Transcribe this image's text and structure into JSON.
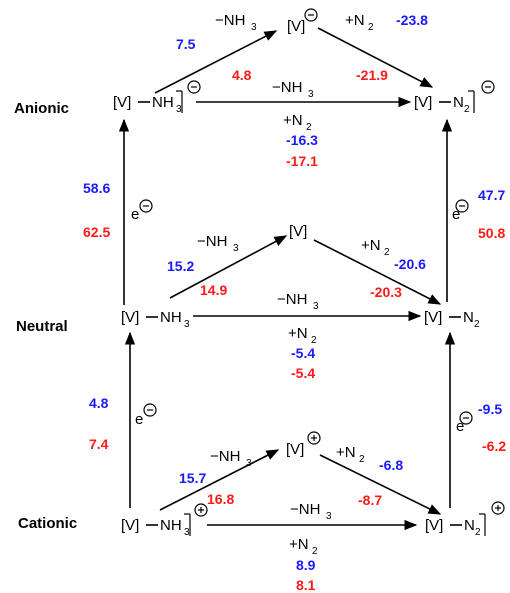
{
  "colors": {
    "blue": "#1a1aff",
    "red": "#ff1a1a",
    "black": "#000000"
  },
  "rows": {
    "anionic": "Anionic",
    "neutral": "Neutral",
    "cationic": "Cationic"
  },
  "species": {
    "v": "[V]",
    "nh3": "NH",
    "n2": "N",
    "sub3": "3",
    "sub2": "2",
    "bond": "—"
  },
  "charges": {
    "minus": "−",
    "plus": "+"
  },
  "steps": {
    "minus_nh3": "−NH",
    "plus_n2": "+N",
    "electron": "e"
  },
  "energies": {
    "anionic": {
      "loss_nh3": {
        "blue": "7.5",
        "red": "4.8"
      },
      "add_n2": {
        "blue": "-23.8",
        "red": "-21.9"
      },
      "direct": {
        "blue": "-16.3",
        "red": "-17.1"
      }
    },
    "neutral": {
      "loss_nh3": {
        "blue": "15.2",
        "red": "14.9"
      },
      "add_n2": {
        "blue": "-20.6",
        "red": "-20.3"
      },
      "direct": {
        "blue": "-5.4",
        "red": "-5.4"
      }
    },
    "cationic": {
      "loss_nh3": {
        "blue": "15.7",
        "red": "16.8"
      },
      "add_n2": {
        "blue": "-6.8",
        "red": "-8.7"
      },
      "direct": {
        "blue": "8.9",
        "red": "8.1"
      }
    },
    "reduction": {
      "neutral_to_anionic_nh3": {
        "blue": "58.6",
        "red": "62.5"
      },
      "cationic_to_neutral_nh3": {
        "blue": "4.8",
        "red": "7.4"
      },
      "neutral_to_anionic_n2": {
        "blue": "47.7",
        "red": "50.8"
      },
      "cationic_to_neutral_n2": {
        "blue": "-9.5",
        "red": "-6.2"
      }
    }
  }
}
